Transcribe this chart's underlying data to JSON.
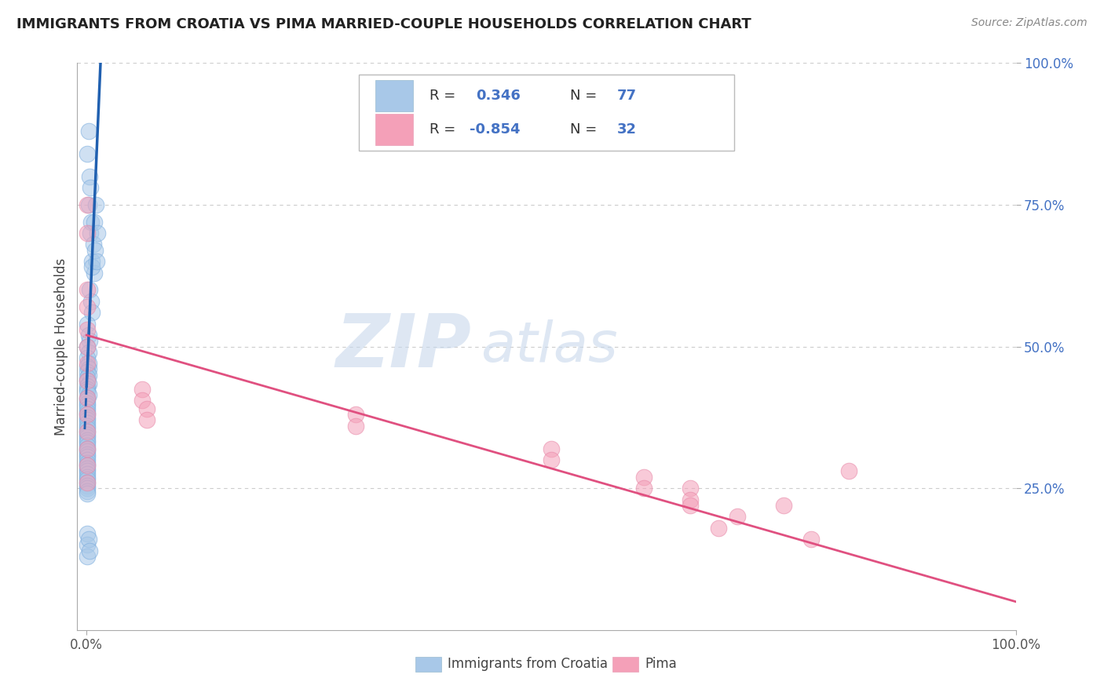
{
  "title": "IMMIGRANTS FROM CROATIA VS PIMA MARRIED-COUPLE HOUSEHOLDS CORRELATION CHART",
  "source": "Source: ZipAtlas.com",
  "ylabel": "Married-couple Households",
  "legend_label1": "Immigrants from Croatia",
  "legend_label2": "Pima",
  "r1": 0.346,
  "n1": 77,
  "r2": -0.854,
  "n2": 32,
  "watermark_zip": "ZIP",
  "watermark_atlas": "atlas",
  "blue_color": "#a8c8e8",
  "pink_color": "#f4a0b8",
  "blue_line_color": "#2060b0",
  "pink_line_color": "#e05080",
  "blue_scatter": [
    [
      0.002,
      0.88
    ],
    [
      0.001,
      0.84
    ],
    [
      0.003,
      0.8
    ],
    [
      0.004,
      0.78
    ],
    [
      0.002,
      0.75
    ],
    [
      0.005,
      0.72
    ],
    [
      0.004,
      0.7
    ],
    [
      0.007,
      0.68
    ],
    [
      0.006,
      0.65
    ],
    [
      0.008,
      0.63
    ],
    [
      0.003,
      0.6
    ],
    [
      0.005,
      0.58
    ],
    [
      0.006,
      0.56
    ],
    [
      0.001,
      0.54
    ],
    [
      0.002,
      0.52
    ],
    [
      0.003,
      0.51
    ],
    [
      0.001,
      0.5
    ],
    [
      0.002,
      0.49
    ],
    [
      0.001,
      0.48
    ],
    [
      0.002,
      0.47
    ],
    [
      0.001,
      0.465
    ],
    [
      0.002,
      0.46
    ],
    [
      0.001,
      0.455
    ],
    [
      0.002,
      0.45
    ],
    [
      0.001,
      0.445
    ],
    [
      0.001,
      0.44
    ],
    [
      0.002,
      0.435
    ],
    [
      0.001,
      0.43
    ],
    [
      0.001,
      0.425
    ],
    [
      0.001,
      0.42
    ],
    [
      0.002,
      0.415
    ],
    [
      0.001,
      0.41
    ],
    [
      0.001,
      0.405
    ],
    [
      0.001,
      0.4
    ],
    [
      0.001,
      0.395
    ],
    [
      0.001,
      0.39
    ],
    [
      0.001,
      0.385
    ],
    [
      0.001,
      0.38
    ],
    [
      0.001,
      0.375
    ],
    [
      0.001,
      0.37
    ],
    [
      0.001,
      0.365
    ],
    [
      0.001,
      0.36
    ],
    [
      0.001,
      0.355
    ],
    [
      0.001,
      0.35
    ],
    [
      0.001,
      0.345
    ],
    [
      0.001,
      0.34
    ],
    [
      0.001,
      0.335
    ],
    [
      0.001,
      0.33
    ],
    [
      0.001,
      0.325
    ],
    [
      0.001,
      0.32
    ],
    [
      0.001,
      0.315
    ],
    [
      0.001,
      0.31
    ],
    [
      0.001,
      0.305
    ],
    [
      0.001,
      0.3
    ],
    [
      0.001,
      0.295
    ],
    [
      0.001,
      0.29
    ],
    [
      0.001,
      0.285
    ],
    [
      0.001,
      0.28
    ],
    [
      0.001,
      0.275
    ],
    [
      0.001,
      0.27
    ],
    [
      0.001,
      0.265
    ],
    [
      0.001,
      0.26
    ],
    [
      0.001,
      0.255
    ],
    [
      0.001,
      0.25
    ],
    [
      0.001,
      0.245
    ],
    [
      0.001,
      0.24
    ],
    [
      0.008,
      0.72
    ],
    [
      0.01,
      0.75
    ],
    [
      0.012,
      0.7
    ],
    [
      0.006,
      0.64
    ],
    [
      0.009,
      0.67
    ],
    [
      0.001,
      0.17
    ],
    [
      0.001,
      0.15
    ],
    [
      0.001,
      0.13
    ],
    [
      0.002,
      0.16
    ],
    [
      0.003,
      0.14
    ],
    [
      0.011,
      0.65
    ]
  ],
  "pink_scatter": [
    [
      0.001,
      0.75
    ],
    [
      0.001,
      0.7
    ],
    [
      0.001,
      0.6
    ],
    [
      0.001,
      0.57
    ],
    [
      0.001,
      0.53
    ],
    [
      0.001,
      0.5
    ],
    [
      0.001,
      0.47
    ],
    [
      0.001,
      0.44
    ],
    [
      0.001,
      0.41
    ],
    [
      0.001,
      0.38
    ],
    [
      0.001,
      0.35
    ],
    [
      0.001,
      0.32
    ],
    [
      0.001,
      0.29
    ],
    [
      0.001,
      0.26
    ],
    [
      0.06,
      0.425
    ],
    [
      0.06,
      0.405
    ],
    [
      0.065,
      0.39
    ],
    [
      0.065,
      0.37
    ],
    [
      0.29,
      0.38
    ],
    [
      0.29,
      0.36
    ],
    [
      0.5,
      0.32
    ],
    [
      0.5,
      0.3
    ],
    [
      0.6,
      0.27
    ],
    [
      0.6,
      0.25
    ],
    [
      0.65,
      0.25
    ],
    [
      0.65,
      0.23
    ],
    [
      0.65,
      0.22
    ],
    [
      0.7,
      0.2
    ],
    [
      0.68,
      0.18
    ],
    [
      0.75,
      0.22
    ],
    [
      0.78,
      0.16
    ],
    [
      0.82,
      0.28
    ]
  ],
  "xlim": [
    -0.01,
    1.0
  ],
  "ylim": [
    0.0,
    1.0
  ],
  "background_color": "#ffffff",
  "grid_color": "#cccccc"
}
